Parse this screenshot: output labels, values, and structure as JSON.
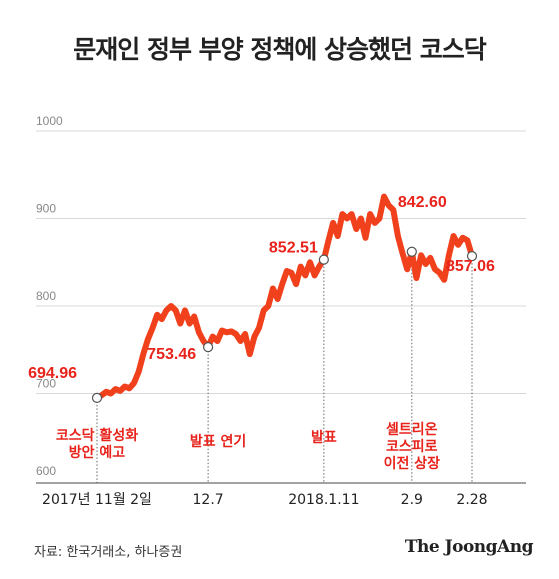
{
  "title": "문재인 정부 부양 정책에 상승했던 코스닥",
  "source": "자료: 한국거래소, 하나증권",
  "brand": "The JoongAng",
  "colors": {
    "line": "#f0401c",
    "label": "#e8231b",
    "grid": "#d9d9d9",
    "axis": "#444444"
  },
  "chart_data": {
    "type": "line",
    "title": "문재인 정부 부양 정책에 상승했던 코스닥",
    "ylim": [
      600,
      1000
    ],
    "yticks": [
      600,
      700,
      800,
      900,
      1000
    ],
    "grid": true,
    "xticks": [
      {
        "label": "2017년 11월 2일",
        "i": 0
      },
      {
        "label": "12.7",
        "i": 24
      },
      {
        "label": "2018.1.11",
        "i": 49
      },
      {
        "label": "2.9",
        "i": 68
      },
      {
        "label": "2.28",
        "i": 81
      }
    ],
    "series": [
      {
        "values": [
          695,
          698,
          702,
          700,
          705,
          703,
          708,
          706,
          712,
          725,
          745,
          762,
          775,
          790,
          785,
          795,
          800,
          795,
          780,
          795,
          780,
          788,
          770,
          760,
          753,
          765,
          760,
          772,
          770,
          771,
          768,
          760,
          768,
          745,
          765,
          775,
          795,
          800,
          820,
          808,
          825,
          840,
          838,
          825,
          845,
          835,
          850,
          835,
          845,
          853,
          875,
          895,
          880,
          905,
          900,
          905,
          888,
          900,
          878,
          905,
          895,
          900,
          925,
          915,
          910,
          880,
          860,
          842,
          862,
          832,
          858,
          848,
          855,
          842,
          838,
          830,
          858,
          880,
          870,
          878,
          875,
          857
        ]
      }
    ],
    "annotations": [
      {
        "i": 0,
        "value": "694.96",
        "note": [
          "코스닥 활성화",
          "방안 예고"
        ]
      },
      {
        "i": 24,
        "value": "753.46",
        "note": [
          "발표 연기"
        ]
      },
      {
        "i": 49,
        "value": "852.51",
        "note": [
          "발표"
        ]
      },
      {
        "i": 68,
        "value": "842.60",
        "note": [
          "셀트리온",
          "코스피로",
          "이전 상장"
        ]
      },
      {
        "i": 81,
        "value": "857.06",
        "note": []
      }
    ]
  }
}
